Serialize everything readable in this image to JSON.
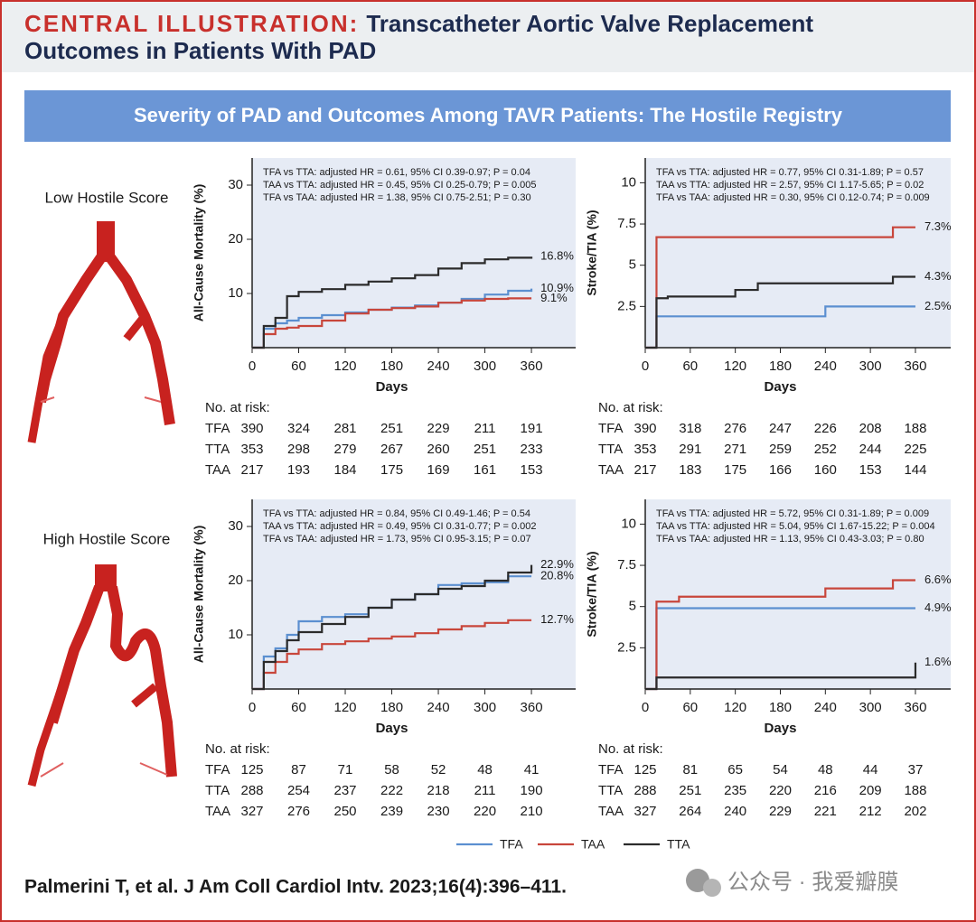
{
  "header": {
    "label": "CENTRAL ILLUSTRATION:",
    "title_lines": [
      "Transcatheter Aortic Valve Replacement",
      "Outcomes in Patients With PAD"
    ]
  },
  "banner": "Severity of PAD and Outcomes Among TAVR Patients: The Hostile Registry",
  "row_labels": [
    "Low Hostile Score",
    "High Hostile Score"
  ],
  "chart_data": [
    {
      "type": "line",
      "step": true,
      "ylabel": "All-Cause Mortality (%)",
      "xlabel": "Days",
      "annotations": [
        "TFA vs TTA: adjusted HR = 0.61, 95% CI 0.39-0.97; P = 0.04",
        "TAA vs TTA: adjusted HR = 0.45, 95% CI 0.25-0.79; P = 0.005",
        "TFA vs TAA: adjusted HR = 1.38, 95% CI 0.75-2.51; P = 0.30"
      ],
      "x": [
        0,
        15,
        30,
        45,
        60,
        90,
        120,
        150,
        180,
        210,
        240,
        270,
        300,
        330,
        360
      ],
      "xlim": [
        0,
        417
      ],
      "xticks": [
        0,
        60,
        120,
        180,
        240,
        300,
        360
      ],
      "ylim": [
        0,
        35
      ],
      "yticks": [
        10,
        20,
        30
      ],
      "series": [
        {
          "name": "TFA",
          "color": "#5b8fd0",
          "values": [
            0,
            3.5,
            4.5,
            5,
            5.5,
            6,
            6.5,
            7,
            7.4,
            7.8,
            8.3,
            9,
            9.8,
            10.5,
            10.9
          ],
          "value_labels": [
            null,
            null,
            null,
            null,
            null,
            null,
            null,
            null,
            null,
            null,
            null,
            null,
            null,
            null,
            "10.9%"
          ]
        },
        {
          "name": "TAA",
          "color": "#c8463b",
          "values": [
            0,
            2.5,
            3.5,
            3.7,
            4,
            5,
            6.3,
            7,
            7.3,
            7.6,
            8.3,
            8.7,
            9,
            9.1,
            9.1
          ],
          "value_labels": [
            null,
            null,
            null,
            null,
            null,
            null,
            null,
            null,
            null,
            null,
            null,
            null,
            null,
            null,
            "9.1%"
          ]
        },
        {
          "name": "TTA",
          "color": "#2b2b2b",
          "values": [
            0,
            4,
            5.5,
            9.5,
            10.3,
            10.8,
            11.6,
            12.2,
            12.8,
            13.4,
            14.6,
            15.6,
            16.3,
            16.6,
            16.8
          ],
          "value_labels": [
            null,
            null,
            null,
            null,
            null,
            null,
            null,
            null,
            null,
            null,
            null,
            null,
            null,
            null,
            "16.8%"
          ]
        }
      ]
    },
    {
      "type": "line",
      "step": true,
      "ylabel": "Stroke/TIA (%)",
      "xlabel": "Days",
      "annotations": [
        "TFA vs TTA: adjusted HR = 0.77, 95% CI 0.31-1.89; P = 0.57",
        "TAA vs TTA: adjusted HR = 2.57, 95% CI 1.17-5.65; P = 0.02",
        "TFA vs TAA: adjusted HR = 0.30, 95% CI 0.12-0.74; P = 0.009"
      ],
      "x": [
        0,
        15,
        30,
        45,
        60,
        90,
        120,
        150,
        180,
        210,
        240,
        270,
        300,
        330,
        360
      ],
      "xlim": [
        0,
        407
      ],
      "xticks": [
        0,
        60,
        120,
        180,
        240,
        300,
        360
      ],
      "ylim": [
        0,
        11.5
      ],
      "yticks": [
        2.5,
        5,
        7.5,
        10
      ],
      "series": [
        {
          "name": "TFA",
          "color": "#5b8fd0",
          "values": [
            0,
            1.9,
            1.9,
            1.9,
            1.9,
            1.9,
            1.9,
            1.9,
            1.9,
            1.9,
            2.5,
            2.5,
            2.5,
            2.5,
            2.5
          ],
          "value_labels": [
            null,
            null,
            null,
            null,
            null,
            null,
            null,
            null,
            null,
            null,
            null,
            null,
            null,
            null,
            "2.5%"
          ]
        },
        {
          "name": "TAA",
          "color": "#c8463b",
          "values": [
            0,
            6.7,
            6.7,
            6.7,
            6.7,
            6.7,
            6.7,
            6.7,
            6.7,
            6.7,
            6.7,
            6.7,
            6.7,
            7.3,
            7.3
          ],
          "value_labels": [
            null,
            null,
            null,
            null,
            null,
            null,
            null,
            null,
            null,
            null,
            null,
            null,
            null,
            null,
            "7.3%"
          ]
        },
        {
          "name": "TTA",
          "color": "#2b2b2b",
          "values": [
            0,
            3,
            3.1,
            3.1,
            3.1,
            3.1,
            3.5,
            3.9,
            3.9,
            3.9,
            3.9,
            3.9,
            3.9,
            4.3,
            4.3
          ],
          "value_labels": [
            null,
            null,
            null,
            null,
            null,
            null,
            null,
            null,
            null,
            null,
            null,
            null,
            null,
            null,
            "4.3%"
          ]
        }
      ]
    },
    {
      "type": "line",
      "step": true,
      "ylabel": "All-Cause Mortality (%)",
      "xlabel": "Days",
      "annotations": [
        "TFA vs TTA: adjusted HR = 0.84, 95% CI 0.49-1.46; P = 0.54",
        "TAA vs TTA: adjusted HR = 0.49, 95% CI 0.31-0.77; P = 0.002",
        "TFA vs TAA: adjusted HR = 1.73, 95% CI 0.95-3.15; P = 0.07"
      ],
      "x": [
        0,
        15,
        30,
        45,
        60,
        90,
        120,
        150,
        180,
        210,
        240,
        270,
        300,
        330,
        360
      ],
      "xlim": [
        0,
        417
      ],
      "xticks": [
        0,
        60,
        120,
        180,
        240,
        300,
        360
      ],
      "ylim": [
        0,
        35
      ],
      "yticks": [
        10,
        20,
        30
      ],
      "series": [
        {
          "name": "TFA",
          "color": "#5b8fd0",
          "values": [
            0,
            6,
            7.5,
            10,
            12.5,
            13.3,
            13.8,
            15,
            16.5,
            17.5,
            19.2,
            19.5,
            19.7,
            20.8,
            20.8
          ],
          "value_labels": [
            null,
            null,
            null,
            null,
            null,
            null,
            null,
            null,
            null,
            null,
            null,
            null,
            null,
            null,
            "20.8%"
          ]
        },
        {
          "name": "TAA",
          "color": "#c8463b",
          "values": [
            0,
            3,
            5,
            6.5,
            7.3,
            8.3,
            8.8,
            9.3,
            9.7,
            10.3,
            11,
            11.6,
            12.2,
            12.7,
            12.7
          ],
          "value_labels": [
            null,
            null,
            null,
            null,
            null,
            null,
            null,
            null,
            null,
            null,
            null,
            null,
            null,
            null,
            "12.7%"
          ]
        },
        {
          "name": "TTA",
          "color": "#2b2b2b",
          "values": [
            0,
            5,
            7,
            9,
            10.5,
            12,
            13.3,
            15,
            16.5,
            17.5,
            18.5,
            19,
            20,
            21.5,
            22.9
          ],
          "value_labels": [
            null,
            null,
            null,
            null,
            null,
            null,
            null,
            null,
            null,
            null,
            null,
            null,
            null,
            null,
            "22.9%"
          ]
        }
      ]
    },
    {
      "type": "line",
      "step": true,
      "ylabel": "Stroke/TIA (%)",
      "xlabel": "Days",
      "annotations": [
        "TFA vs TTA: adjusted HR = 5.72, 95% CI 0.31-1.89; P = 0.009",
        "TAA vs TTA: adjusted HR = 5.04, 95% CI 1.67-15.22; P = 0.004",
        "TFA vs TAA: adjusted HR = 1.13, 95% CI 0.43-3.03; P = 0.80"
      ],
      "x": [
        0,
        15,
        30,
        45,
        60,
        90,
        120,
        150,
        180,
        210,
        240,
        270,
        300,
        330,
        360
      ],
      "xlim": [
        0,
        407
      ],
      "xticks": [
        0,
        60,
        120,
        180,
        240,
        300,
        360
      ],
      "ylim": [
        0,
        11.5
      ],
      "yticks": [
        2.5,
        5,
        7.5,
        10
      ],
      "series": [
        {
          "name": "TFA",
          "color": "#5b8fd0",
          "values": [
            0,
            4.9,
            4.9,
            4.9,
            4.9,
            4.9,
            4.9,
            4.9,
            4.9,
            4.9,
            4.9,
            4.9,
            4.9,
            4.9,
            4.9
          ],
          "value_labels": [
            null,
            null,
            null,
            null,
            null,
            null,
            null,
            null,
            null,
            null,
            null,
            null,
            null,
            null,
            "4.9%"
          ]
        },
        {
          "name": "TAA",
          "color": "#c8463b",
          "values": [
            0,
            5.3,
            5.3,
            5.6,
            5.6,
            5.6,
            5.6,
            5.6,
            5.6,
            5.6,
            6.1,
            6.1,
            6.1,
            6.6,
            6.6
          ],
          "value_labels": [
            null,
            null,
            null,
            null,
            null,
            null,
            null,
            null,
            null,
            null,
            null,
            null,
            null,
            null,
            "6.6%"
          ]
        },
        {
          "name": "TTA",
          "color": "#2b2b2b",
          "values": [
            0,
            0.7,
            0.7,
            0.7,
            0.7,
            0.7,
            0.7,
            0.7,
            0.7,
            0.7,
            0.7,
            0.7,
            0.7,
            0.7,
            1.6
          ],
          "value_labels": [
            null,
            null,
            null,
            null,
            null,
            null,
            null,
            null,
            null,
            null,
            null,
            null,
            null,
            null,
            "1.6%"
          ]
        }
      ]
    }
  ],
  "risk_tables": [
    {
      "title": "No. at risk:",
      "rows": [
        {
          "label": "TFA",
          "values": [
            390,
            324,
            281,
            251,
            229,
            211,
            191
          ]
        },
        {
          "label": "TTA",
          "values": [
            353,
            298,
            279,
            267,
            260,
            251,
            233
          ]
        },
        {
          "label": "TAA",
          "values": [
            217,
            193,
            184,
            175,
            169,
            161,
            153
          ]
        }
      ]
    },
    {
      "title": "No. at risk:",
      "rows": [
        {
          "label": "TFA",
          "values": [
            390,
            318,
            276,
            247,
            226,
            208,
            188
          ]
        },
        {
          "label": "TTA",
          "values": [
            353,
            291,
            271,
            259,
            252,
            244,
            225
          ]
        },
        {
          "label": "TAA",
          "values": [
            217,
            183,
            175,
            166,
            160,
            153,
            144
          ]
        }
      ]
    },
    {
      "title": "No. at risk:",
      "rows": [
        {
          "label": "TFA",
          "values": [
            125,
            87,
            71,
            58,
            52,
            48,
            41
          ]
        },
        {
          "label": "TTA",
          "values": [
            288,
            254,
            237,
            222,
            218,
            211,
            190
          ]
        },
        {
          "label": "TAA",
          "values": [
            327,
            276,
            250,
            239,
            230,
            220,
            210
          ]
        }
      ]
    },
    {
      "title": "No. at risk:",
      "rows": [
        {
          "label": "TFA",
          "values": [
            125,
            81,
            65,
            54,
            48,
            44,
            37
          ]
        },
        {
          "label": "TTA",
          "values": [
            288,
            251,
            235,
            220,
            216,
            209,
            188
          ]
        },
        {
          "label": "TAA",
          "values": [
            327,
            264,
            240,
            229,
            221,
            212,
            202
          ]
        }
      ]
    }
  ],
  "citation": "Palmerini T, et al. J Am Coll Cardiol Intv. 2023;16(4):396–411.",
  "watermark": "公众号 · 我爱瓣膜"
}
